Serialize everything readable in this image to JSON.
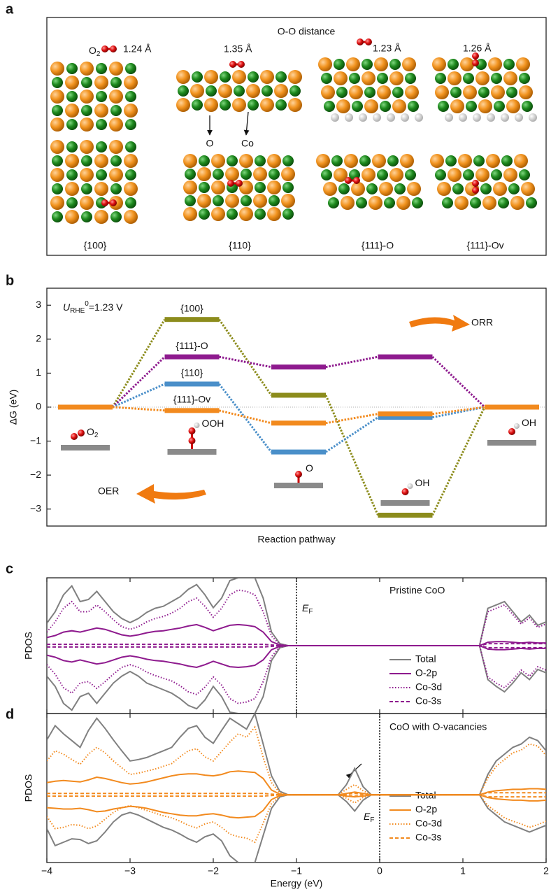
{
  "panel_labels": [
    "a",
    "b",
    "c",
    "d"
  ],
  "panel_a": {
    "title": "O-O distance",
    "o2_label": {
      "text": "O",
      "sub": "2"
    },
    "distances": [
      "1.24 Å",
      "1.35 Å",
      "1.23 Å",
      "1.26 Å"
    ],
    "atom_labels": [
      "O",
      "Co"
    ],
    "facets": [
      "{100}",
      "{110}",
      "{111}-O",
      "{111}-Ov"
    ]
  },
  "chart_data": [
    {
      "type": "energy_levels",
      "xlabel": "Reaction pathway",
      "ylabel": "ΔG (eV)",
      "annotation": {
        "symbol": "U",
        "sub": "RHE",
        "sup": "0",
        "text": "=1.23 V"
      },
      "arrows": [
        "ORR",
        "OER"
      ],
      "steps": [
        {
          "label": "O",
          "sub": "2"
        },
        {
          "label": "OOH"
        },
        {
          "label": "O"
        },
        {
          "label": "OH"
        },
        {
          "label": "OH"
        }
      ],
      "ylim": [
        -3.5,
        3.5
      ],
      "yticks": [
        {
          "value": -3,
          "label": "−3"
        },
        {
          "value": -2,
          "label": "−2"
        },
        {
          "value": -1,
          "label": "−1"
        },
        0,
        1,
        2,
        3
      ],
      "series": [
        {
          "name": "{100}",
          "color": "#8c8c1c",
          "values": [
            0,
            2.58,
            0.35,
            -3.18,
            0
          ]
        },
        {
          "name": "{111}-O",
          "color": "#8e1a8e",
          "values": [
            0,
            1.48,
            1.18,
            1.48,
            0
          ]
        },
        {
          "name": "{110}",
          "color": "#4a8fc9",
          "values": [
            0,
            0.68,
            -1.32,
            -0.3,
            0
          ]
        },
        {
          "name": "{111}-Ov",
          "color": "#f28a1e",
          "values": [
            0,
            -0.1,
            -0.47,
            -0.2,
            0
          ]
        }
      ]
    },
    {
      "type": "pdos",
      "title": "Pristine CoO",
      "ylabel": "PDOS",
      "fermi_energy": -1.0,
      "fermi_label": {
        "symbol": "E",
        "sub": "F"
      },
      "xlim": [
        -4,
        2
      ],
      "xticks": [
        -4,
        -3,
        -2,
        -1,
        0,
        1,
        2
      ],
      "ylim": [
        -10,
        10
      ],
      "x": [
        -4.0,
        -3.9,
        -3.8,
        -3.7,
        -3.6,
        -3.5,
        -3.4,
        -3.3,
        -3.2,
        -3.1,
        -3.0,
        -2.9,
        -2.8,
        -2.7,
        -2.6,
        -2.5,
        -2.4,
        -2.3,
        -2.2,
        -2.1,
        -2.0,
        -1.9,
        -1.8,
        -1.7,
        -1.6,
        -1.5,
        -1.4,
        -1.3,
        -1.2,
        -1.1,
        -1.0,
        1.2,
        1.3,
        1.4,
        1.5,
        1.6,
        1.7,
        1.8,
        1.9,
        2.0
      ],
      "series": [
        {
          "name": "Total",
          "color": "#808080",
          "style": "solid",
          "up": [
            3.3,
            5.0,
            7.5,
            8.8,
            6.5,
            6.8,
            8.0,
            6.5,
            5.0,
            4.0,
            3.4,
            4.0,
            4.9,
            5.5,
            5.8,
            6.5,
            7.2,
            8.3,
            9.0,
            7.5,
            5.6,
            7.0,
            9.6,
            10,
            10,
            10,
            7.0,
            2.0,
            0.3,
            0,
            0,
            0,
            5.5,
            6.0,
            6.5,
            5.0,
            3.5,
            4.5,
            3.0,
            3.5
          ],
          "down": [
            -4.5,
            -6.0,
            -8.5,
            -9.5,
            -7.5,
            -7.0,
            -8.5,
            -7.0,
            -5.5,
            -4.5,
            -3.8,
            -4.5,
            -5.5,
            -6.0,
            -6.5,
            -7.0,
            -7.8,
            -8.8,
            -9.3,
            -8.0,
            -6.0,
            -7.5,
            -9.8,
            -10,
            -10,
            -10,
            -7.5,
            -2.2,
            -0.3,
            0,
            0,
            0,
            -5.0,
            -6.0,
            -6.8,
            -5.5,
            -4.0,
            -5.0,
            -3.5,
            -4.0
          ]
        },
        {
          "name": "O-2p",
          "color": "#8e1a8e",
          "style": "solid",
          "up": [
            1.2,
            1.5,
            2.0,
            2.2,
            2.0,
            2.3,
            2.6,
            2.4,
            2.0,
            1.6,
            1.4,
            1.6,
            1.9,
            2.1,
            2.2,
            2.4,
            2.6,
            2.9,
            3.1,
            2.7,
            2.2,
            2.6,
            3.0,
            3.1,
            3.0,
            2.8,
            2.0,
            0.6,
            0.1,
            0,
            0,
            0,
            0.5,
            0.6,
            0.6,
            0.5,
            0.4,
            0.5,
            0.4,
            0.4
          ],
          "down": [
            -1.4,
            -1.7,
            -2.2,
            -2.4,
            -2.1,
            -2.4,
            -2.7,
            -2.5,
            -2.1,
            -1.7,
            -1.5,
            -1.7,
            -2.0,
            -2.2,
            -2.3,
            -2.5,
            -2.7,
            -3.0,
            -3.2,
            -2.8,
            -2.3,
            -2.7,
            -3.1,
            -3.2,
            -3.1,
            -2.9,
            -2.1,
            -0.6,
            -0.1,
            0,
            0,
            0,
            -0.5,
            -0.6,
            -0.6,
            -0.5,
            -0.4,
            -0.5,
            -0.4,
            -0.4
          ]
        },
        {
          "name": "Co-3d",
          "color": "#8e1a8e",
          "style": "dotted",
          "up": [
            2.0,
            3.5,
            5.5,
            6.5,
            5.0,
            5.0,
            6.0,
            5.0,
            3.8,
            2.8,
            2.4,
            2.8,
            3.5,
            4.0,
            4.3,
            4.8,
            5.5,
            6.5,
            7.0,
            5.8,
            4.2,
            5.5,
            7.5,
            8.2,
            8.0,
            7.5,
            5.0,
            1.4,
            0.2,
            0,
            0,
            0,
            5.0,
            5.5,
            6.0,
            4.6,
            3.2,
            4.1,
            2.7,
            3.2
          ],
          "down": [
            -2.8,
            -4.2,
            -6.2,
            -7.0,
            -5.5,
            -5.3,
            -6.3,
            -5.3,
            -4.2,
            -3.2,
            -2.8,
            -3.2,
            -3.9,
            -4.4,
            -4.8,
            -5.2,
            -5.9,
            -6.8,
            -7.2,
            -6.1,
            -4.6,
            -5.8,
            -7.8,
            -8.5,
            -8.3,
            -7.8,
            -5.3,
            -1.6,
            -0.2,
            0,
            0,
            0,
            -4.6,
            -5.5,
            -6.2,
            -5.0,
            -3.6,
            -4.5,
            -3.1,
            -3.6
          ]
        },
        {
          "name": "Co-3s",
          "color": "#8e1a8e",
          "style": "dashed",
          "up": [
            0.2,
            0.2,
            0.2,
            0.2,
            0.2,
            0.2,
            0.2,
            0.2,
            0.2,
            0.2,
            0.2,
            0.2,
            0.2,
            0.2,
            0.2,
            0.2,
            0.2,
            0.2,
            0.2,
            0.2,
            0.2,
            0.2,
            0.2,
            0.2,
            0.2,
            0.2,
            0.2,
            0.1,
            0,
            0,
            0,
            0,
            0.3,
            0.3,
            0.3,
            0.3,
            0.3,
            0.3,
            0.3,
            0.3
          ],
          "down": [
            -0.2,
            -0.2,
            -0.2,
            -0.2,
            -0.2,
            -0.2,
            -0.2,
            -0.2,
            -0.2,
            -0.2,
            -0.2,
            -0.2,
            -0.2,
            -0.2,
            -0.2,
            -0.2,
            -0.2,
            -0.2,
            -0.2,
            -0.2,
            -0.2,
            -0.2,
            -0.2,
            -0.2,
            -0.2,
            -0.2,
            -0.2,
            -0.1,
            0,
            0,
            0,
            0,
            -0.3,
            -0.3,
            -0.3,
            -0.3,
            -0.3,
            -0.3,
            -0.3,
            -0.3
          ]
        }
      ]
    },
    {
      "type": "pdos",
      "title": "CoO with O-vacancies",
      "ylabel": "PDOS",
      "xlabel": "Energy (eV)",
      "fermi_energy": 0,
      "fermi_label": {
        "symbol": "E",
        "sub": "F"
      },
      "xlim": [
        -4,
        2
      ],
      "xticks": [
        {
          "value": -4,
          "label": "−4"
        },
        {
          "value": -3,
          "label": "−3"
        },
        {
          "value": -2,
          "label": "−2"
        },
        {
          "value": -1,
          "label": "−1"
        },
        0,
        1,
        2
      ],
      "ylim": [
        -10,
        12
      ],
      "x": [
        -4.0,
        -3.9,
        -3.8,
        -3.7,
        -3.6,
        -3.5,
        -3.4,
        -3.3,
        -3.2,
        -3.1,
        -3.0,
        -2.9,
        -2.8,
        -2.7,
        -2.6,
        -2.5,
        -2.4,
        -2.3,
        -2.2,
        -2.1,
        -2.0,
        -1.9,
        -1.8,
        -1.7,
        -1.6,
        -1.5,
        -1.4,
        -1.3,
        -1.2,
        -1.1,
        -1.0,
        -0.5,
        -0.4,
        -0.3,
        -0.2,
        -0.1,
        1.2,
        1.3,
        1.4,
        1.5,
        1.6,
        1.7,
        1.8,
        1.9,
        2.0
      ],
      "series": [
        {
          "name": "Total",
          "color": "#808080",
          "style": "solid",
          "up": [
            8.1,
            10.2,
            9.0,
            8.0,
            7.0,
            9.5,
            11.3,
            9.8,
            8.1,
            6.5,
            5.0,
            5.2,
            5.5,
            6.0,
            6.5,
            7.0,
            8.5,
            9.8,
            10.2,
            8.5,
            7.6,
            9.5,
            11.3,
            10.5,
            9.7,
            12,
            7.5,
            2.8,
            0.5,
            0,
            0,
            0,
            1.5,
            3.9,
            1.2,
            0,
            0,
            3.0,
            5.0,
            6.0,
            7.0,
            7.5,
            8.5,
            8.0,
            6.5
          ],
          "down": [
            -5.0,
            -7.5,
            -7.0,
            -6.5,
            -6.6,
            -7.2,
            -6.8,
            -5.5,
            -4.0,
            -3.0,
            -2.6,
            -3.0,
            -3.6,
            -4.2,
            -4.8,
            -5.2,
            -5.8,
            -6.5,
            -7.0,
            -6.2,
            -5.8,
            -6.8,
            -9.0,
            -10,
            -10,
            -10,
            -6.0,
            -2.0,
            -0.3,
            0,
            0,
            0,
            -1.0,
            -2.4,
            -0.8,
            0,
            0,
            -2.0,
            -3.0,
            -4.0,
            -4.5,
            -5.0,
            -5.5,
            -5.0,
            -4.5
          ]
        },
        {
          "name": "O-2p",
          "color": "#f28a1e",
          "style": "solid",
          "up": [
            1.8,
            2.0,
            2.1,
            2.0,
            1.9,
            2.2,
            2.6,
            2.4,
            2.1,
            1.8,
            1.6,
            1.7,
            1.9,
            2.2,
            2.5,
            2.8,
            3.0,
            3.1,
            3.1,
            2.9,
            2.8,
            3.0,
            3.4,
            3.5,
            3.4,
            3.3,
            2.4,
            0.7,
            0.1,
            0,
            0,
            0,
            0.2,
            0.4,
            0.2,
            0,
            0,
            0.4,
            0.6,
            0.7,
            0.8,
            0.8,
            0.9,
            0.9,
            0.8
          ],
          "down": [
            -1.9,
            -2.0,
            -2.1,
            -2.1,
            -2.0,
            -2.2,
            -2.5,
            -2.4,
            -2.1,
            -1.9,
            -1.7,
            -1.8,
            -2.0,
            -2.3,
            -2.6,
            -2.8,
            -3.0,
            -3.1,
            -3.1,
            -2.9,
            -2.8,
            -3.0,
            -3.3,
            -3.4,
            -3.3,
            -3.2,
            -2.3,
            -0.7,
            -0.1,
            0,
            0,
            0,
            -0.2,
            -0.3,
            -0.2,
            0,
            0,
            -0.4,
            -0.6,
            -0.7,
            -0.8,
            -0.8,
            -0.9,
            -0.9,
            -0.8
          ]
        },
        {
          "name": "Co-3d",
          "color": "#f28a1e",
          "style": "dotted",
          "up": [
            5.0,
            6.5,
            6.0,
            5.2,
            4.5,
            6.0,
            7.0,
            6.2,
            5.0,
            4.0,
            3.0,
            3.2,
            3.5,
            3.8,
            4.2,
            4.6,
            5.6,
            6.5,
            6.8,
            5.6,
            5.0,
            6.4,
            7.8,
            9.0,
            8.5,
            10.0,
            5.5,
            1.8,
            0.3,
            0,
            0,
            0,
            0.8,
            1.5,
            0.6,
            0,
            0,
            2.5,
            4.2,
            5.2,
            6.2,
            6.6,
            7.5,
            7.2,
            5.8
          ],
          "down": [
            -3.2,
            -5.0,
            -4.8,
            -4.4,
            -4.5,
            -5.0,
            -4.6,
            -3.6,
            -2.6,
            -1.9,
            -1.6,
            -1.9,
            -2.3,
            -2.7,
            -3.1,
            -3.4,
            -3.9,
            -4.5,
            -4.9,
            -4.3,
            -4.0,
            -4.8,
            -5.8,
            -6.2,
            -6.4,
            -7.0,
            -4.2,
            -1.3,
            -0.2,
            0,
            0,
            0,
            -0.5,
            -1.2,
            -0.4,
            0,
            0,
            -1.6,
            -2.5,
            -3.4,
            -3.9,
            -4.3,
            -4.8,
            -4.4,
            -3.9
          ]
        },
        {
          "name": "Co-3s",
          "color": "#f28a1e",
          "style": "dashed",
          "up": [
            0.2,
            0.2,
            0.2,
            0.2,
            0.2,
            0.2,
            0.2,
            0.2,
            0.2,
            0.2,
            0.2,
            0.2,
            0.2,
            0.2,
            0.2,
            0.2,
            0.2,
            0.2,
            0.2,
            0.2,
            0.2,
            0.2,
            0.2,
            0.2,
            0.2,
            0.2,
            0.2,
            0.1,
            0,
            0,
            0,
            0,
            0.1,
            0.2,
            0.1,
            0,
            0,
            0.3,
            0.3,
            0.3,
            0.3,
            0.3,
            0.3,
            0.3,
            0.3
          ],
          "down": [
            -0.2,
            -0.2,
            -0.2,
            -0.2,
            -0.2,
            -0.2,
            -0.2,
            -0.2,
            -0.2,
            -0.2,
            -0.2,
            -0.2,
            -0.2,
            -0.2,
            -0.2,
            -0.2,
            -0.2,
            -0.2,
            -0.2,
            -0.2,
            -0.2,
            -0.2,
            -0.2,
            -0.2,
            -0.2,
            -0.2,
            -0.2,
            -0.1,
            0,
            0,
            0,
            0,
            -0.1,
            -0.2,
            -0.1,
            0,
            0,
            -0.3,
            -0.3,
            -0.3,
            -0.3,
            -0.3,
            -0.3,
            -0.3,
            -0.3
          ]
        }
      ]
    }
  ]
}
